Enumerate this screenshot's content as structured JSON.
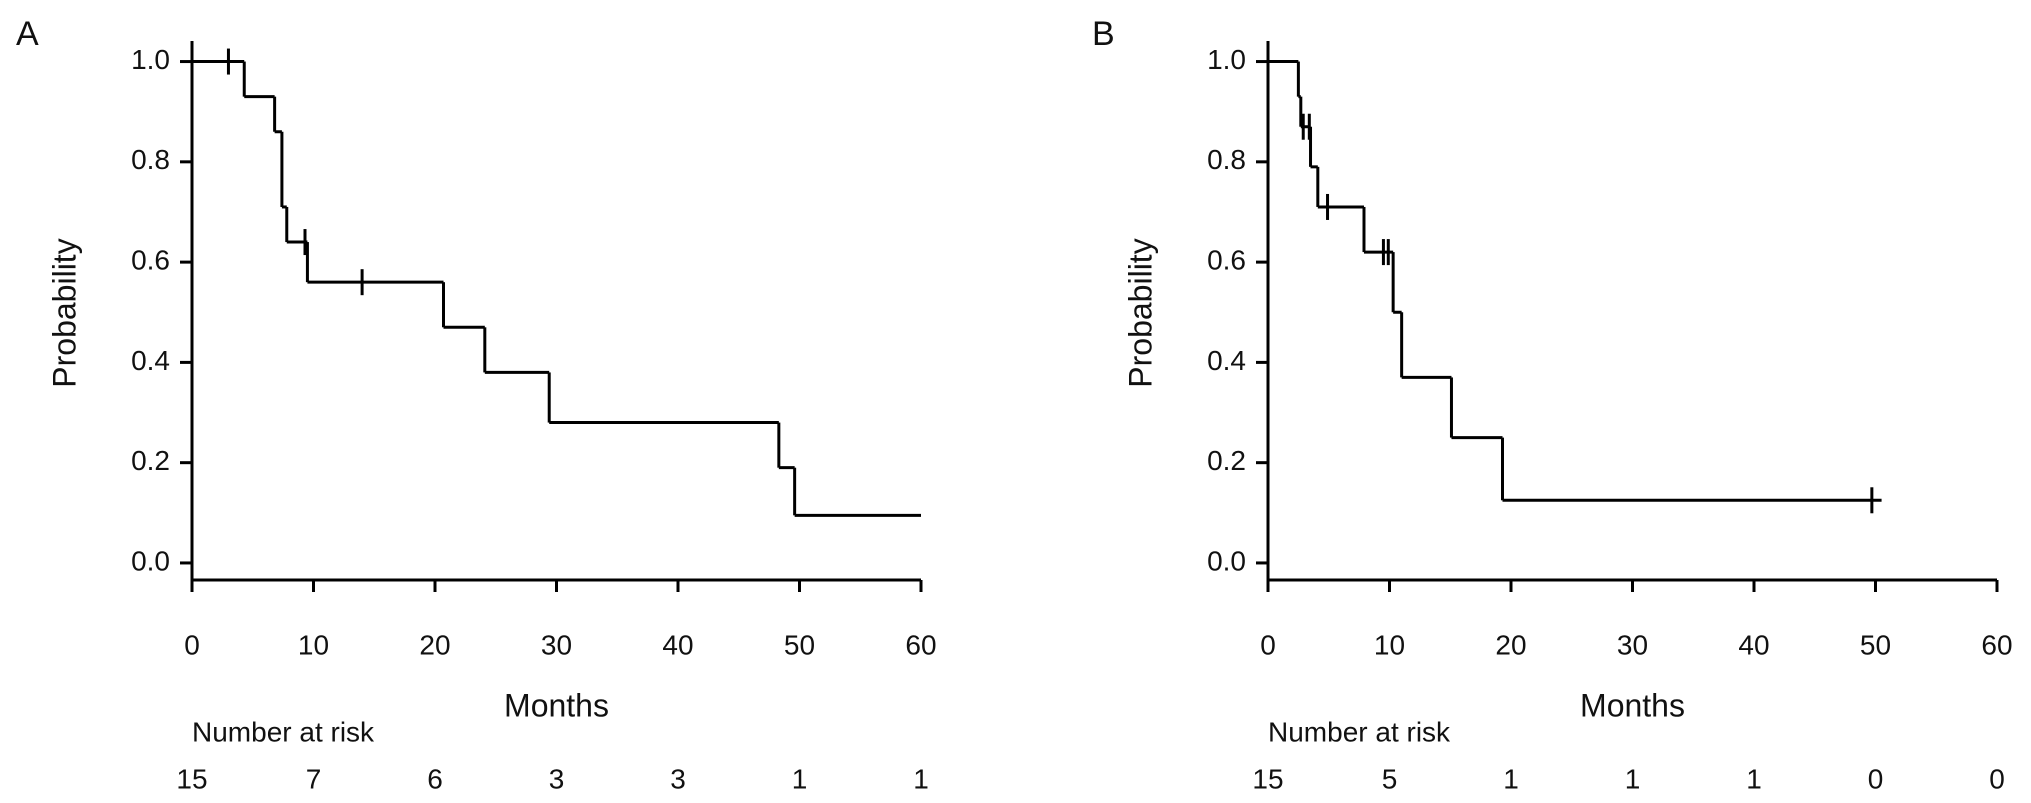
{
  "chart_data": [
    {
      "type": "step",
      "panel": "A",
      "x_label": "Months",
      "y_label": "Probability",
      "color": "#000000",
      "xlim": [
        0,
        60
      ],
      "ylim": [
        -0.034,
        1.041
      ],
      "xticks": [
        0,
        10,
        20,
        30,
        40,
        50,
        60
      ],
      "yticks": [
        {
          "value": 0,
          "label": "0.0"
        },
        0.2,
        0.4,
        0.6,
        0.8,
        {
          "value": 1,
          "label": "1.0"
        }
      ],
      "x": [
        0,
        4.3,
        6.8,
        7.4,
        7.8,
        9.5,
        20.7,
        24.1,
        29.4,
        48.3,
        49.6,
        60
      ],
      "values": [
        1,
        0.93,
        0.86,
        0.71,
        0.64,
        0.56,
        0.47,
        0.38,
        0.28,
        0.19,
        0.095,
        0.095
      ],
      "censored": {
        "x": [
          3,
          9.3,
          14
        ],
        "values": [
          1,
          0.64,
          0.56
        ]
      },
      "risk_table": {
        "title": "Number at risk",
        "values": [
          15,
          7,
          6,
          3,
          3,
          1,
          1
        ]
      }
    },
    {
      "type": "step",
      "panel": "B",
      "x_label": "Months",
      "y_label": "Probability",
      "color": "#000000",
      "xlim": [
        0,
        60
      ],
      "ylim": [
        -0.034,
        1.041
      ],
      "xticks": [
        0,
        10,
        20,
        30,
        40,
        50,
        60
      ],
      "yticks": [
        {
          "value": 0,
          "label": "0.0"
        },
        0.2,
        0.4,
        0.6,
        0.8,
        {
          "value": 1,
          "label": "1.0"
        }
      ],
      "x": [
        0,
        2.5,
        2.7,
        3.5,
        4.1,
        7.9,
        10.3,
        11.0,
        15.1,
        19.3,
        50.5
      ],
      "values": [
        1,
        0.93,
        0.87,
        0.79,
        0.71,
        0.62,
        0.5,
        0.37,
        0.25,
        0.125,
        0.125
      ],
      "censored": {
        "x": [
          2.9,
          3.4,
          4.9,
          9.5,
          9.9,
          49.7
        ],
        "values": [
          0.87,
          0.87,
          0.71,
          0.62,
          0.62,
          0.125
        ]
      },
      "risk_table": {
        "title": "Number at risk",
        "values": [
          15,
          5,
          1,
          1,
          1,
          0,
          0
        ]
      }
    }
  ]
}
